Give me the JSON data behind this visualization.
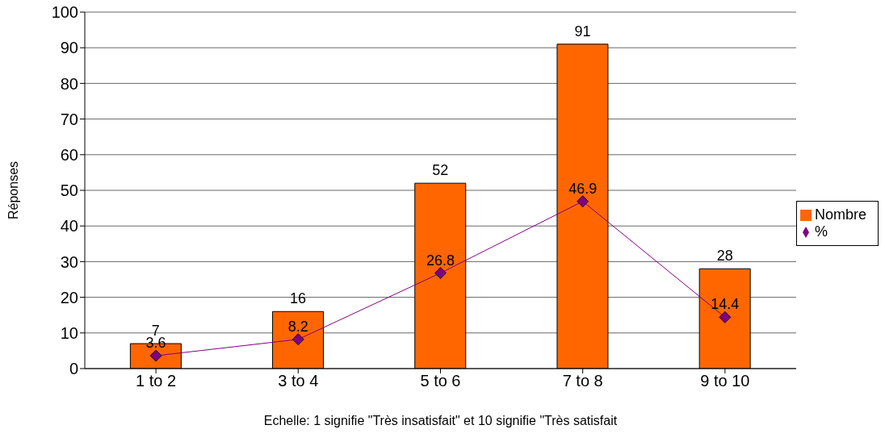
{
  "chart_data": {
    "type": "bar",
    "xlabel": "Echelle: 1 signifie \"Très insatisfait\" et 10 signifie \"Très satisfait",
    "ylabel": "Réponses",
    "categories": [
      "1 to 2",
      "3 to 4",
      "5 to 6",
      "7 to 8",
      "9 to 10"
    ],
    "series": [
      {
        "name": "Nombre",
        "color": "#ff6600",
        "values": [
          7,
          16,
          52,
          91,
          28
        ]
      },
      {
        "name": "%",
        "type": "line",
        "color": "#800080",
        "values": [
          3.6,
          8.2,
          26.8,
          46.9,
          14.4
        ]
      }
    ],
    "ylim": [
      0,
      100
    ],
    "yticks": [
      0,
      10,
      20,
      30,
      40,
      50,
      60,
      70,
      80,
      90,
      100
    ],
    "grid": "y",
    "legend": "right",
    "marker": "diamond",
    "data_labels": true
  }
}
